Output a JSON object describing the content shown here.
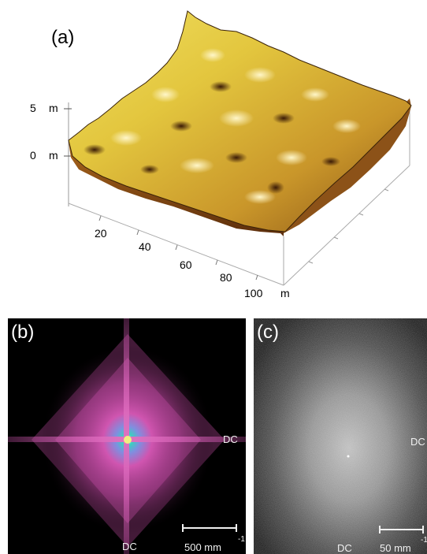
{
  "figure": {
    "panel_a": {
      "letter": "(a)",
      "z_ticks": [
        "5",
        "0"
      ],
      "z_unit": "m",
      "x_ticks": [
        "20",
        "40",
        "60",
        "80",
        "100"
      ],
      "x_unit": "m"
    },
    "panel_b": {
      "letter": "(b)",
      "dc_right": "DC",
      "dc_bottom": "DC",
      "scale_label": "500 mm",
      "scale_exponent": "-1"
    },
    "panel_c": {
      "letter": "(c)",
      "dc_right": "DC",
      "dc_bottom": "DC",
      "scale_label": "50 mm",
      "scale_exponent": "-1"
    }
  },
  "colors": {
    "surface_light": "#e8d84a",
    "surface_mid": "#c9a12a",
    "surface_dark": "#7a4312",
    "spectrum_magenta": "#d055b0",
    "spectrum_center": "#3ad0c0"
  }
}
